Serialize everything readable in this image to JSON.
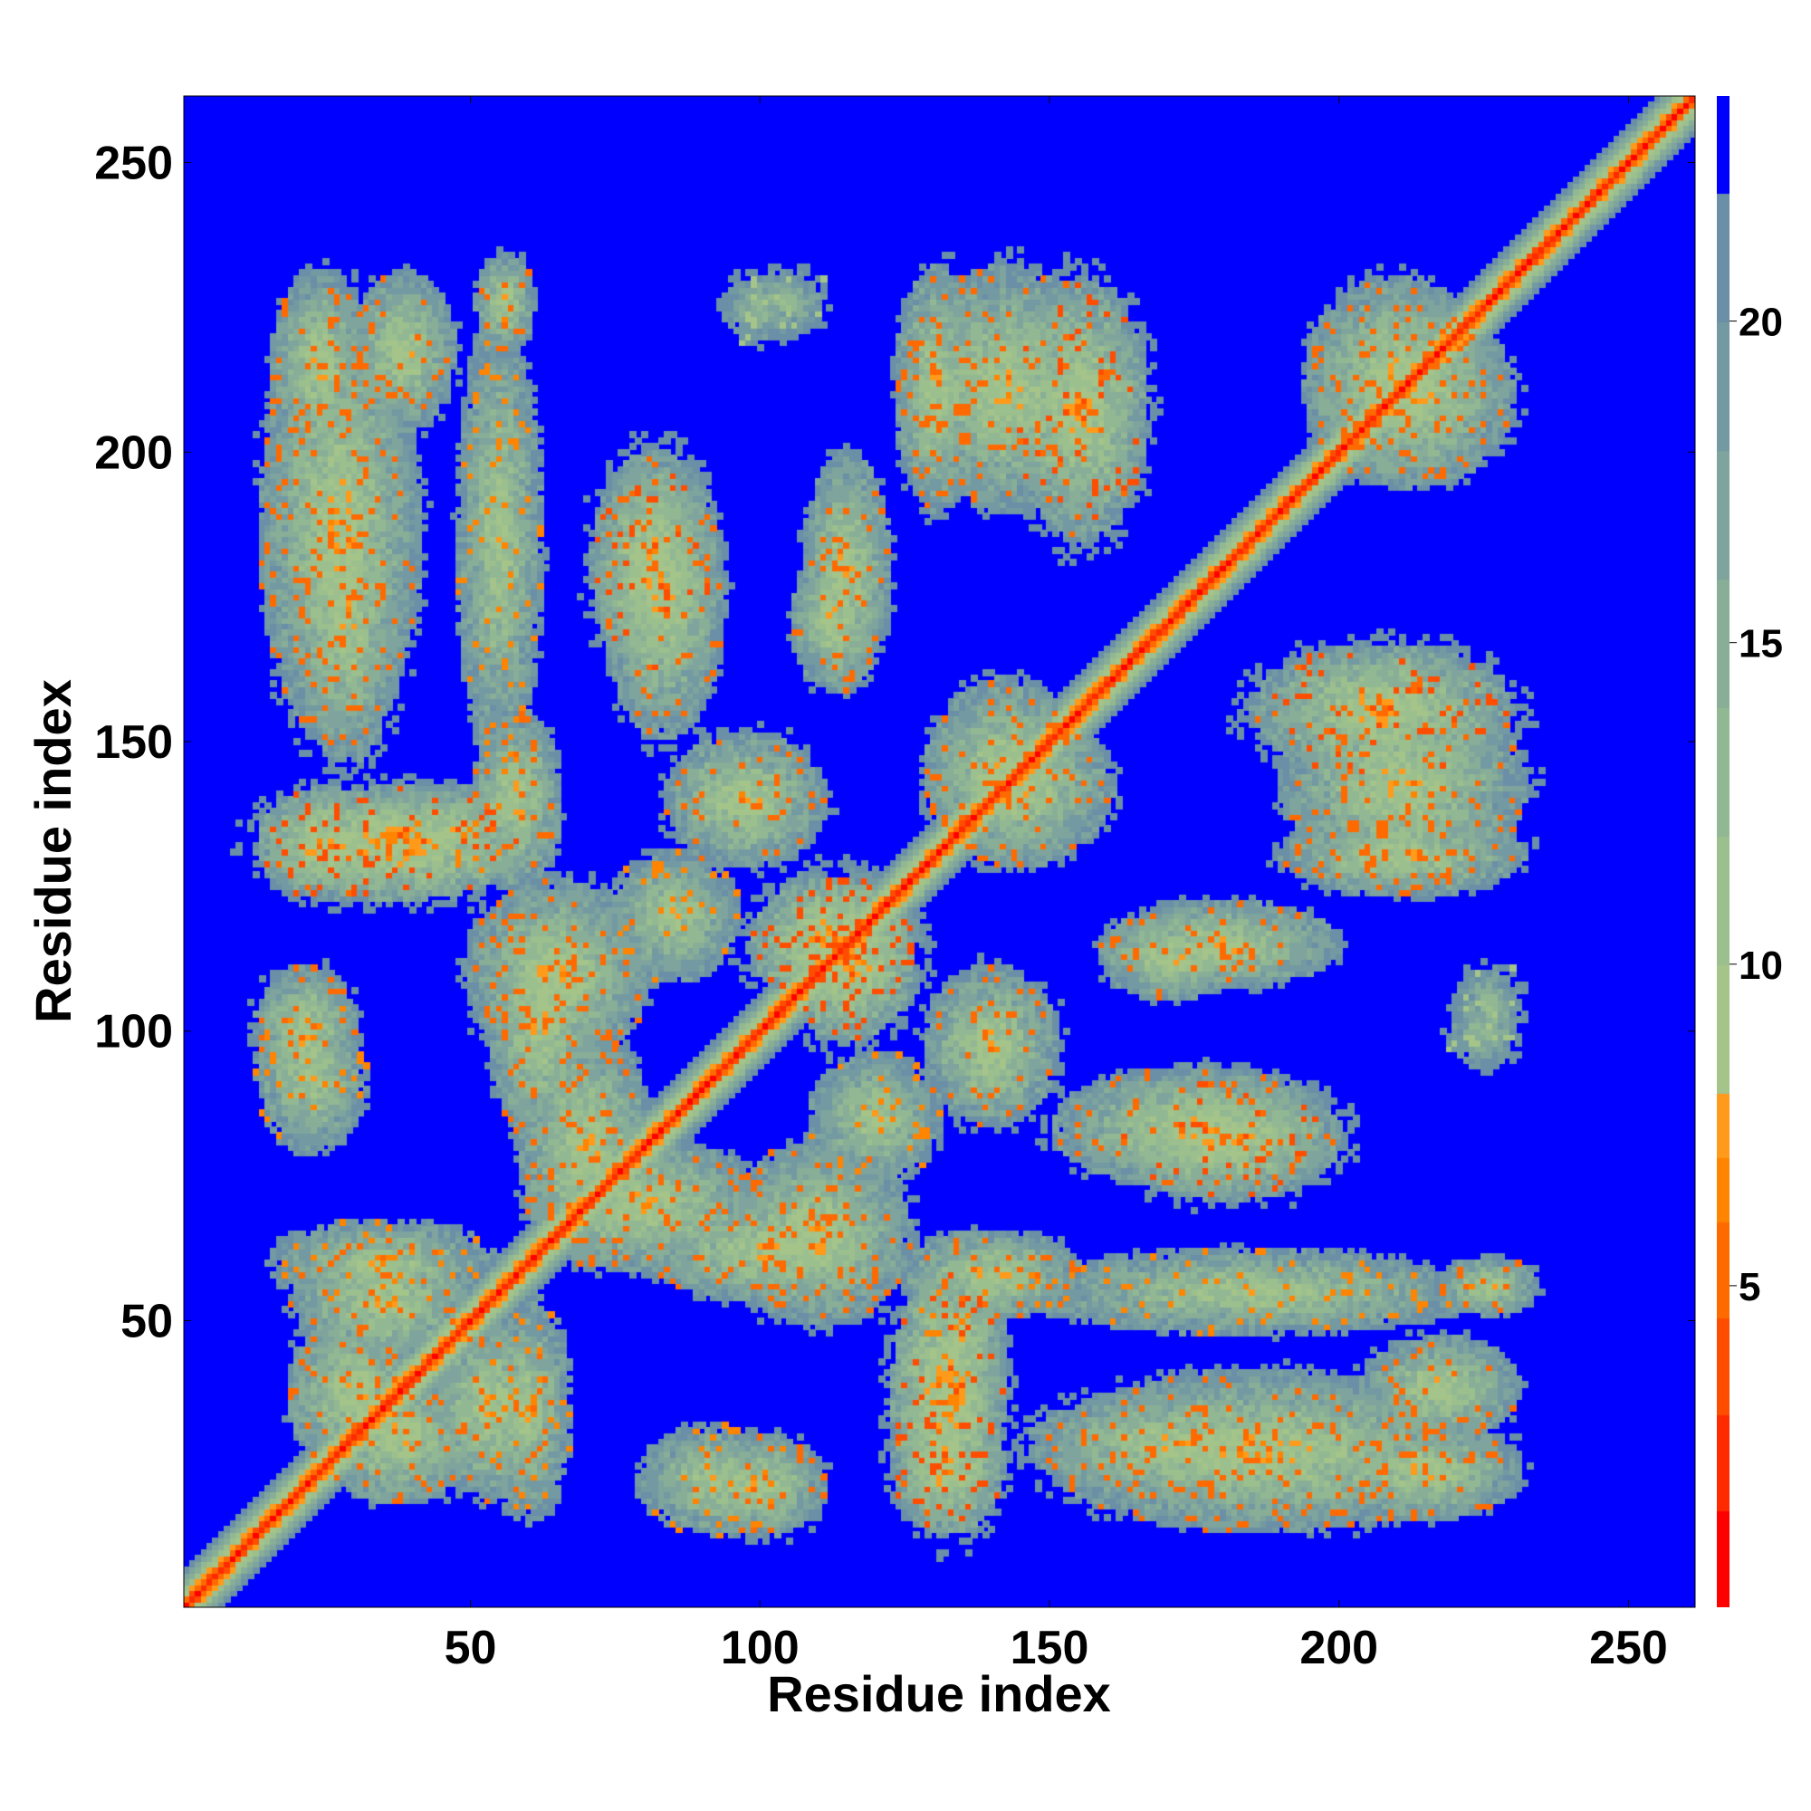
{
  "chart_data": {
    "type": "heatmap",
    "title": "",
    "xlabel": "Residue index",
    "ylabel": "Residue index",
    "n_residues": 261,
    "xlim": [
      1,
      261
    ],
    "ylim": [
      1,
      261
    ],
    "x_ticks": [
      50,
      100,
      150,
      200,
      250
    ],
    "y_ticks": [
      50,
      100,
      150,
      200,
      250
    ],
    "grid": false,
    "colorbar": {
      "location": "right",
      "range": [
        0,
        23.5
      ],
      "ticks": [
        5,
        10,
        15,
        20
      ],
      "bands": [
        {
          "from": 0.0,
          "to": 1.5,
          "color": "#ff0000"
        },
        {
          "from": 1.5,
          "to": 3.0,
          "color": "#ff2a00"
        },
        {
          "from": 3.0,
          "to": 4.5,
          "color": "#ff4d00"
        },
        {
          "from": 4.5,
          "to": 6.0,
          "color": "#ff6a00"
        },
        {
          "from": 6.0,
          "to": 7.0,
          "color": "#ff8400"
        },
        {
          "from": 7.0,
          "to": 8.0,
          "color": "#ff9a1a"
        },
        {
          "from": 8.0,
          "to": 10.0,
          "color": "#a4c48a"
        },
        {
          "from": 10.0,
          "to": 12.0,
          "color": "#9cbf8e"
        },
        {
          "from": 12.0,
          "to": 14.0,
          "color": "#92b893"
        },
        {
          "from": 14.0,
          "to": 16.0,
          "color": "#88ae98"
        },
        {
          "from": 16.0,
          "to": 18.0,
          "color": "#7ea49d"
        },
        {
          "from": 18.0,
          "to": 20.0,
          "color": "#7399a2"
        },
        {
          "from": 20.0,
          "to": 22.0,
          "color": "#6a8fa6"
        },
        {
          "from": 22.0,
          "to": 23.5,
          "color": "#0000ff"
        }
      ],
      "background_color": "#0000ff"
    },
    "diagonal": {
      "halfwidth_residues": 6,
      "core_value": 1.0
    },
    "contact_regions": [
      {
        "x": [
          18,
          30
        ],
        "y": [
          200,
          230
        ],
        "peak": 5
      },
      {
        "x": [
          32,
          45
        ],
        "y": [
          205,
          230
        ],
        "peak": 5
      },
      {
        "x": [
          54,
          58
        ],
        "y": [
          220,
          232
        ],
        "peak": 5
      },
      {
        "x": [
          22,
          35
        ],
        "y": [
          145,
          200
        ],
        "peak": 5
      },
      {
        "x": [
          15,
          35
        ],
        "y": [
          125,
          140
        ],
        "peak": 4
      },
      {
        "x": [
          35,
          60
        ],
        "y": [
          130,
          140
        ],
        "peak": 6
      },
      {
        "x": [
          53,
          63
        ],
        "y": [
          125,
          155
        ],
        "peak": 5
      },
      {
        "x": [
          15,
          28
        ],
        "y": [
          90,
          110
        ],
        "peak": 5
      },
      {
        "x": [
          50,
          80
        ],
        "y": [
          95,
          125
        ],
        "peak": 5
      },
      {
        "x": [
          60,
          80
        ],
        "y": [
          60,
          100
        ],
        "peak": 5
      },
      {
        "x": [
          80,
          125
        ],
        "y": [
          55,
          70
        ],
        "peak": 5
      },
      {
        "x": [
          15,
          55
        ],
        "y": [
          55,
          65
        ],
        "peak": 6
      },
      {
        "x": [
          20,
          40
        ],
        "y": [
          25,
          50
        ],
        "peak": 5
      },
      {
        "x": [
          45,
          62
        ],
        "y": [
          20,
          50
        ],
        "peak": 5
      },
      {
        "x": [
          80,
          105
        ],
        "y": [
          15,
          30
        ],
        "peak": 6
      },
      {
        "x": [
          73,
          90
        ],
        "y": [
          160,
          200
        ],
        "peak": 4
      },
      {
        "x": [
          85,
          110
        ],
        "y": [
          130,
          150
        ],
        "peak": 5
      },
      {
        "x": [
          100,
          125
        ],
        "y": [
          105,
          125
        ],
        "peak": 3
      },
      {
        "x": [
          110,
          130
        ],
        "y": [
          75,
          95
        ],
        "peak": 6
      },
      {
        "x": [
          108,
          118
        ],
        "y": [
          160,
          182
        ],
        "peak": 5
      },
      {
        "x": [
          100,
          110
        ],
        "y": [
          222,
          230
        ],
        "peak": 9
      },
      {
        "x": [
          126,
          135
        ],
        "y": [
          190,
          232
        ],
        "peak": 5
      },
      {
        "x": [
          146,
          165
        ],
        "y": [
          185,
          230
        ],
        "peak": 4
      },
      {
        "x": [
          130,
          155
        ],
        "y": [
          130,
          160
        ],
        "peak": 5
      },
      {
        "x": [
          150,
          200
        ],
        "y": [
          75,
          92
        ],
        "peak": 5
      },
      {
        "x": [
          125,
          140
        ],
        "y": [
          15,
          60
        ],
        "peak": 3
      },
      {
        "x": [
          145,
          230
        ],
        "y": [
          15,
          40
        ],
        "peak": 5
      },
      {
        "x": [
          140,
          230
        ],
        "y": [
          50,
          60
        ],
        "peak": 6
      },
      {
        "x": [
          190,
          232
        ],
        "y": [
          125,
          160
        ],
        "peak": 5
      },
      {
        "x": [
          160,
          200
        ],
        "y": [
          110,
          120
        ],
        "peak": 5
      },
      {
        "x": [
          220,
          230
        ],
        "y": [
          95,
          105
        ],
        "peak": 9
      },
      {
        "x": [
          195,
          230
        ],
        "y": [
          195,
          225
        ],
        "peak": 5
      }
    ]
  }
}
